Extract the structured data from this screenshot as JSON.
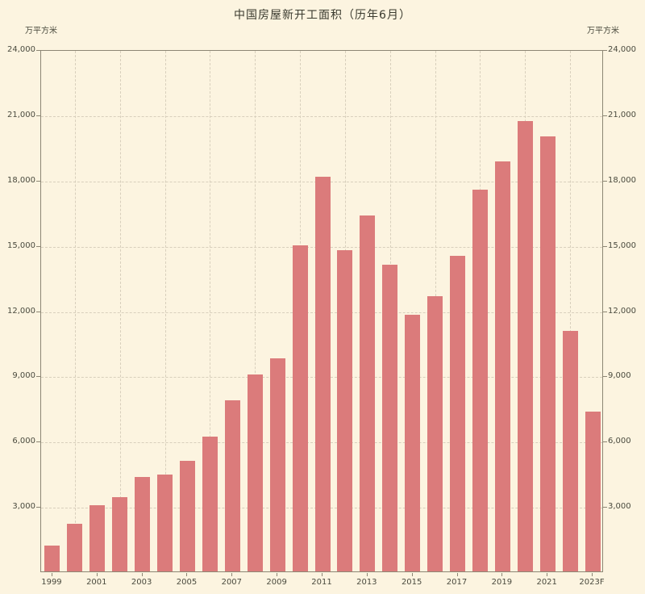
{
  "chart": {
    "title": "中国房屋新开工面积（历年6月）",
    "unit_left": "万平方米",
    "unit_right": "万平方米"
  },
  "chart_data": {
    "type": "bar",
    "title": "中国房屋新开工面积（历年6月）",
    "ylabel": "万平方米",
    "categories": [
      "1999",
      "2000",
      "2001",
      "2002",
      "2003",
      "2004",
      "2005",
      "2006",
      "2007",
      "2008",
      "2009",
      "2010",
      "2011",
      "2012",
      "2013",
      "2014",
      "2015",
      "2016",
      "2017",
      "2018",
      "2019",
      "2020",
      "2021",
      "2022",
      "2023F"
    ],
    "values": [
      1200,
      2200,
      3050,
      3400,
      4350,
      4450,
      5100,
      6200,
      7850,
      9050,
      9800,
      15000,
      18150,
      14750,
      16350,
      14100,
      11800,
      12650,
      14500,
      17550,
      18850,
      20700,
      20000,
      11050,
      7350
    ],
    "x_tick_labels": [
      "1999",
      "2001",
      "2003",
      "2005",
      "2007",
      "2009",
      "2011",
      "2013",
      "2015",
      "2017",
      "2019",
      "2021",
      "2023F"
    ],
    "y_tick_labels": [
      "3,000",
      "6,000",
      "9,000",
      "12,000",
      "15,000",
      "18,000",
      "21,000",
      "24,000"
    ],
    "ylim": [
      0,
      24000
    ],
    "y_tick_step": 3000,
    "grid": "dashed",
    "legend": "none",
    "colors": {
      "bar": "#DB7B7B",
      "background": "#FCF4E0",
      "grid": "#D8CFBC",
      "axis": "#8C8674",
      "text": "#4A4A3E"
    }
  }
}
